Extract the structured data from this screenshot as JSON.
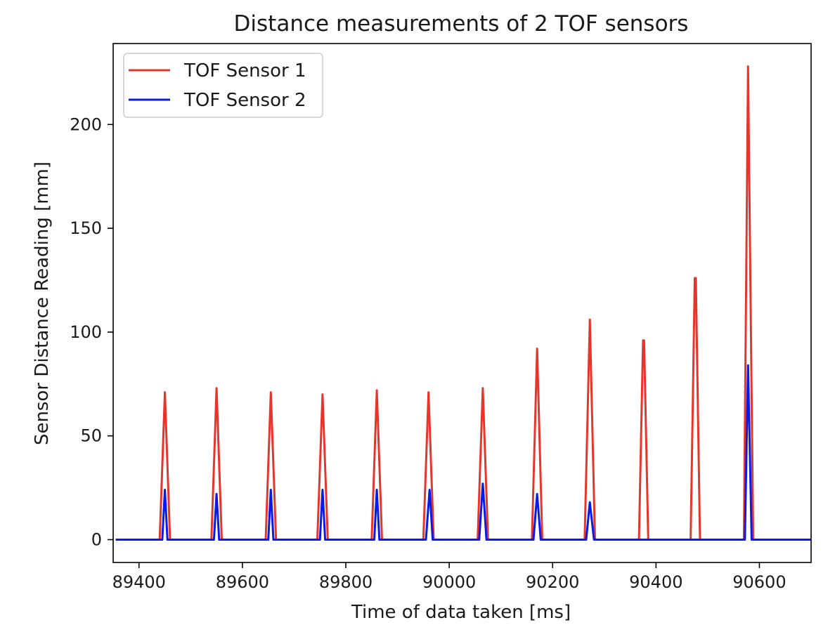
{
  "chart_data": {
    "type": "line",
    "title": "Distance measurements of 2 TOF sensors",
    "xlabel": "Time of data taken [ms]",
    "ylabel": "Sensor Distance Reading [mm]",
    "xlim": [
      89350,
      90700
    ],
    "ylim": [
      -11,
      239
    ],
    "xticks": [
      89400,
      89600,
      89800,
      90000,
      90200,
      90400,
      90600
    ],
    "yticks": [
      0,
      50,
      100,
      150,
      200
    ],
    "grid": false,
    "legend_position": "top-left",
    "series": [
      {
        "name": "TOF Sensor 1",
        "color": "#e8352b",
        "x": [
          89355,
          89440,
          89450,
          89460,
          89540,
          89550,
          89560,
          89645,
          89655,
          89665,
          89745,
          89755,
          89765,
          89850,
          89860,
          89870,
          89950,
          89960,
          89970,
          90055,
          90065,
          90075,
          90160,
          90170,
          90180,
          90262,
          90272,
          90282,
          90367,
          90375,
          90377,
          90385,
          90467,
          90475,
          90477,
          90485,
          90570,
          90578,
          90588,
          90700
        ],
        "y": [
          0,
          0,
          71,
          0,
          0,
          73,
          0,
          0,
          71,
          0,
          0,
          70,
          0,
          0,
          72,
          0,
          0,
          71,
          0,
          0,
          73,
          0,
          0,
          92,
          0,
          0,
          106,
          0,
          0,
          96,
          96,
          0,
          0,
          126,
          126,
          0,
          0,
          228,
          0,
          0
        ]
      },
      {
        "name": "TOF Sensor 2",
        "color": "#0a1ae8",
        "x": [
          89355,
          89445,
          89450,
          89455,
          89545,
          89550,
          89555,
          89650,
          89655,
          89660,
          89750,
          89755,
          89760,
          89855,
          89860,
          89865,
          89955,
          89962,
          89968,
          90058,
          90065,
          90072,
          90163,
          90170,
          90177,
          90265,
          90272,
          90280,
          90572,
          90578,
          90585,
          90700
        ],
        "y": [
          0,
          0,
          24,
          0,
          0,
          22,
          0,
          0,
          24,
          0,
          0,
          24,
          0,
          0,
          24,
          0,
          0,
          24,
          0,
          0,
          27,
          0,
          0,
          22,
          0,
          0,
          18,
          0,
          0,
          84,
          0,
          0
        ]
      }
    ]
  }
}
